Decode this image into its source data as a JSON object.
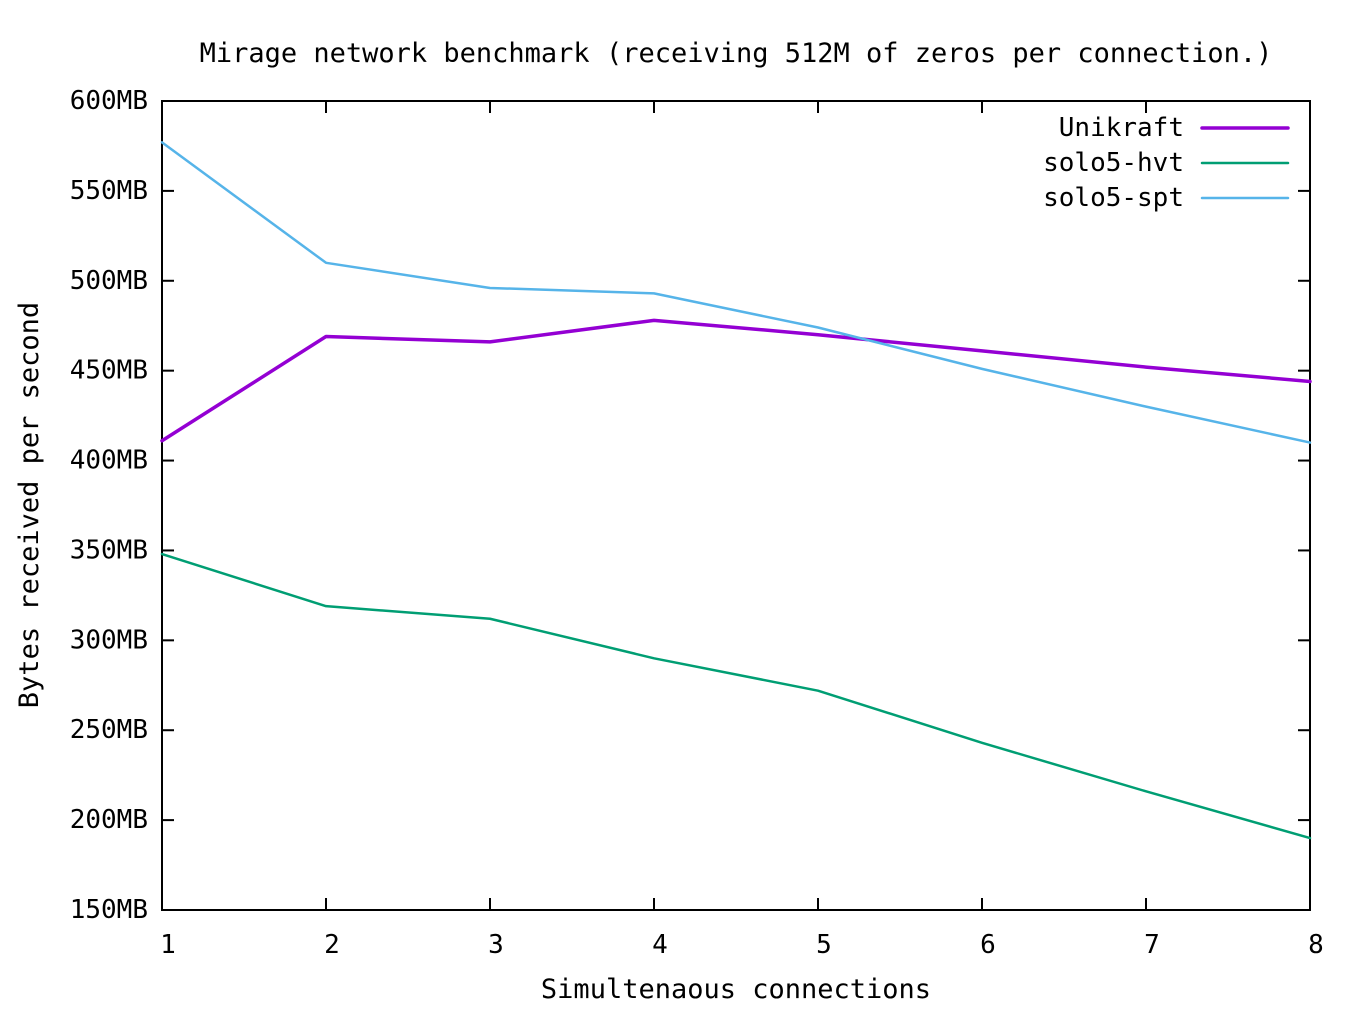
{
  "title": "Mirage network benchmark (receiving 512M of zeros per connection.)",
  "axes": {
    "x_label": "Simultenaous connections",
    "y_label": "Bytes received per second",
    "x_ticks": [
      "1",
      "2",
      "3",
      "4",
      "5",
      "6",
      "7",
      "8"
    ],
    "y_ticks": [
      "150MB",
      "200MB",
      "250MB",
      "300MB",
      "350MB",
      "400MB",
      "450MB",
      "500MB",
      "550MB",
      "600MB"
    ]
  },
  "legend": {
    "position": "top-right-inside",
    "entries": [
      {
        "label": "Unikraft",
        "color": "#9400D3"
      },
      {
        "label": "solo5-hvt",
        "color": "#009E73"
      },
      {
        "label": "solo5-spt",
        "color": "#56B4E9"
      }
    ]
  },
  "chart_data": {
    "type": "line",
    "title": "Mirage network benchmark (receiving 512M of zeros per connection.)",
    "xlabel": "Simultenaous connections",
    "ylabel": "Bytes received per second",
    "x": [
      1,
      2,
      3,
      4,
      5,
      6,
      7,
      8
    ],
    "xlim": [
      1,
      8
    ],
    "ylim": [
      150,
      600
    ],
    "y_tick_step": 50,
    "y_unit": "MB",
    "grid": false,
    "legend_position": "top-right inside",
    "series": [
      {
        "name": "Unikraft",
        "color": "#9400D3",
        "values": [
          411,
          469,
          466,
          478,
          470,
          461,
          452,
          444
        ]
      },
      {
        "name": "solo5-hvt",
        "color": "#009E73",
        "values": [
          348,
          319,
          312,
          290,
          272,
          243,
          216,
          190
        ]
      },
      {
        "name": "solo5-spt",
        "color": "#56B4E9",
        "values": [
          577,
          510,
          496,
          493,
          474,
          451,
          430,
          410
        ]
      }
    ]
  },
  "colors": {
    "background": "#ffffff",
    "plot_border": "#000000",
    "text": "#000000"
  }
}
